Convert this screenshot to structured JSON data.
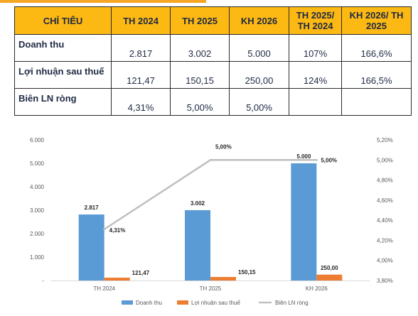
{
  "table": {
    "headers": [
      "CHỈ TIÊU",
      "TH 2024",
      "TH 2025",
      "KH 2026",
      "TH 2025/ TH 2024",
      "KH 2026/ TH 2025"
    ],
    "rows": [
      [
        "Doanh thu",
        "2.817",
        "3.002",
        "5.000",
        "107%",
        "166,6%"
      ],
      [
        "Lợi nhuận sau thuế",
        "121,47",
        "150,15",
        "250,00",
        "124%",
        "166,5%"
      ],
      [
        "Biên LN ròng",
        "4,31%",
        "5,00%",
        "5,00%",
        "",
        ""
      ]
    ]
  },
  "chart_data": {
    "type": "bar",
    "categories": [
      "TH 2024",
      "TH 2025",
      "KH 2026"
    ],
    "series": [
      {
        "name": "Doanh thu",
        "type": "bar",
        "axis": "left",
        "color": "#5b9bd5",
        "values": [
          2817,
          3002,
          5000
        ],
        "labels": [
          "2.817",
          "3.002",
          "5.000"
        ]
      },
      {
        "name": "Lợi nhuận sau thuế",
        "type": "bar",
        "axis": "left",
        "color": "#ed7d31",
        "values": [
          121.47,
          150.15,
          250.0
        ],
        "labels": [
          "121,47",
          "150,15",
          "250,00"
        ]
      },
      {
        "name": "Biên LN ròng",
        "type": "line",
        "axis": "right",
        "color": "#bfbfbf",
        "values": [
          4.31,
          5.0,
          5.0
        ],
        "labels": [
          "4,31%",
          "5,00%",
          "5,00%"
        ]
      }
    ],
    "ylim": [
      0,
      6000
    ],
    "y_ticks": [
      "-",
      "1.000",
      "2.000",
      "3.000",
      "4.000",
      "5.000",
      "6.000"
    ],
    "y2lim": [
      3.8,
      5.2
    ],
    "y2_ticks": [
      "3,80%",
      "4,00%",
      "4,20%",
      "4,40%",
      "4,60%",
      "4,80%",
      "5,00%",
      "5,20%"
    ],
    "legend_position": "bottom",
    "grid": false
  }
}
